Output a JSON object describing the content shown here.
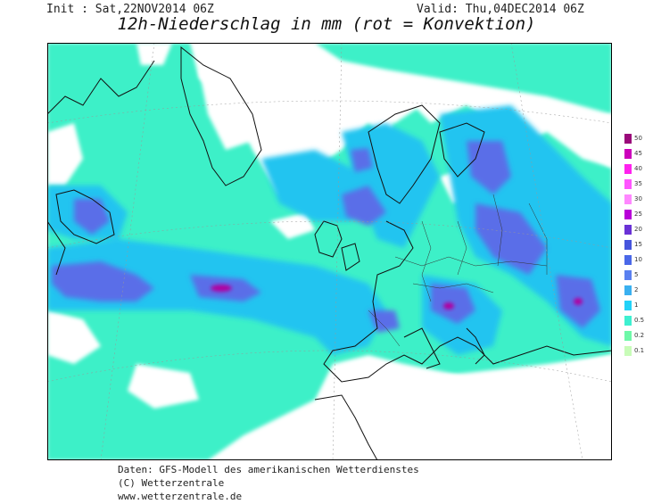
{
  "header": {
    "init": "Init : Sat,22NOV2014 06Z",
    "valid": "Valid: Thu,04DEC2014 06Z",
    "title": "12h-Niederschlag in mm (rot = Konvektion)"
  },
  "legend": {
    "levels": [
      "50",
      "45",
      "40",
      "35",
      "30",
      "25",
      "20",
      "15",
      "10",
      "5",
      "2",
      "1",
      "0.5",
      "0.2",
      "0.1"
    ],
    "colors": [
      "#9a0a7a",
      "#cc00bb",
      "#ff22ee",
      "#ff55ff",
      "#ff88ff",
      "#b800d8",
      "#6a32d6",
      "#4655dd",
      "#4a68e8",
      "#5a80f0",
      "#3ab0f0",
      "#22d2f8",
      "#3ef0d0",
      "#6ef8a8",
      "#c8fcb8"
    ]
  },
  "footer": {
    "line1": "Daten: GFS-Modell des amerikanischen Wetterdienstes",
    "line2": "(C) Wetterzentrale",
    "line3": "www.wetterzentrale.de"
  },
  "colors": {
    "precip_light": "#3ef0c8",
    "precip_medium": "#22c4f0",
    "precip_heavy": "#5a6ee8",
    "precip_extreme": "#b000a0",
    "land_line": "#111111",
    "background": "#ffffff"
  }
}
